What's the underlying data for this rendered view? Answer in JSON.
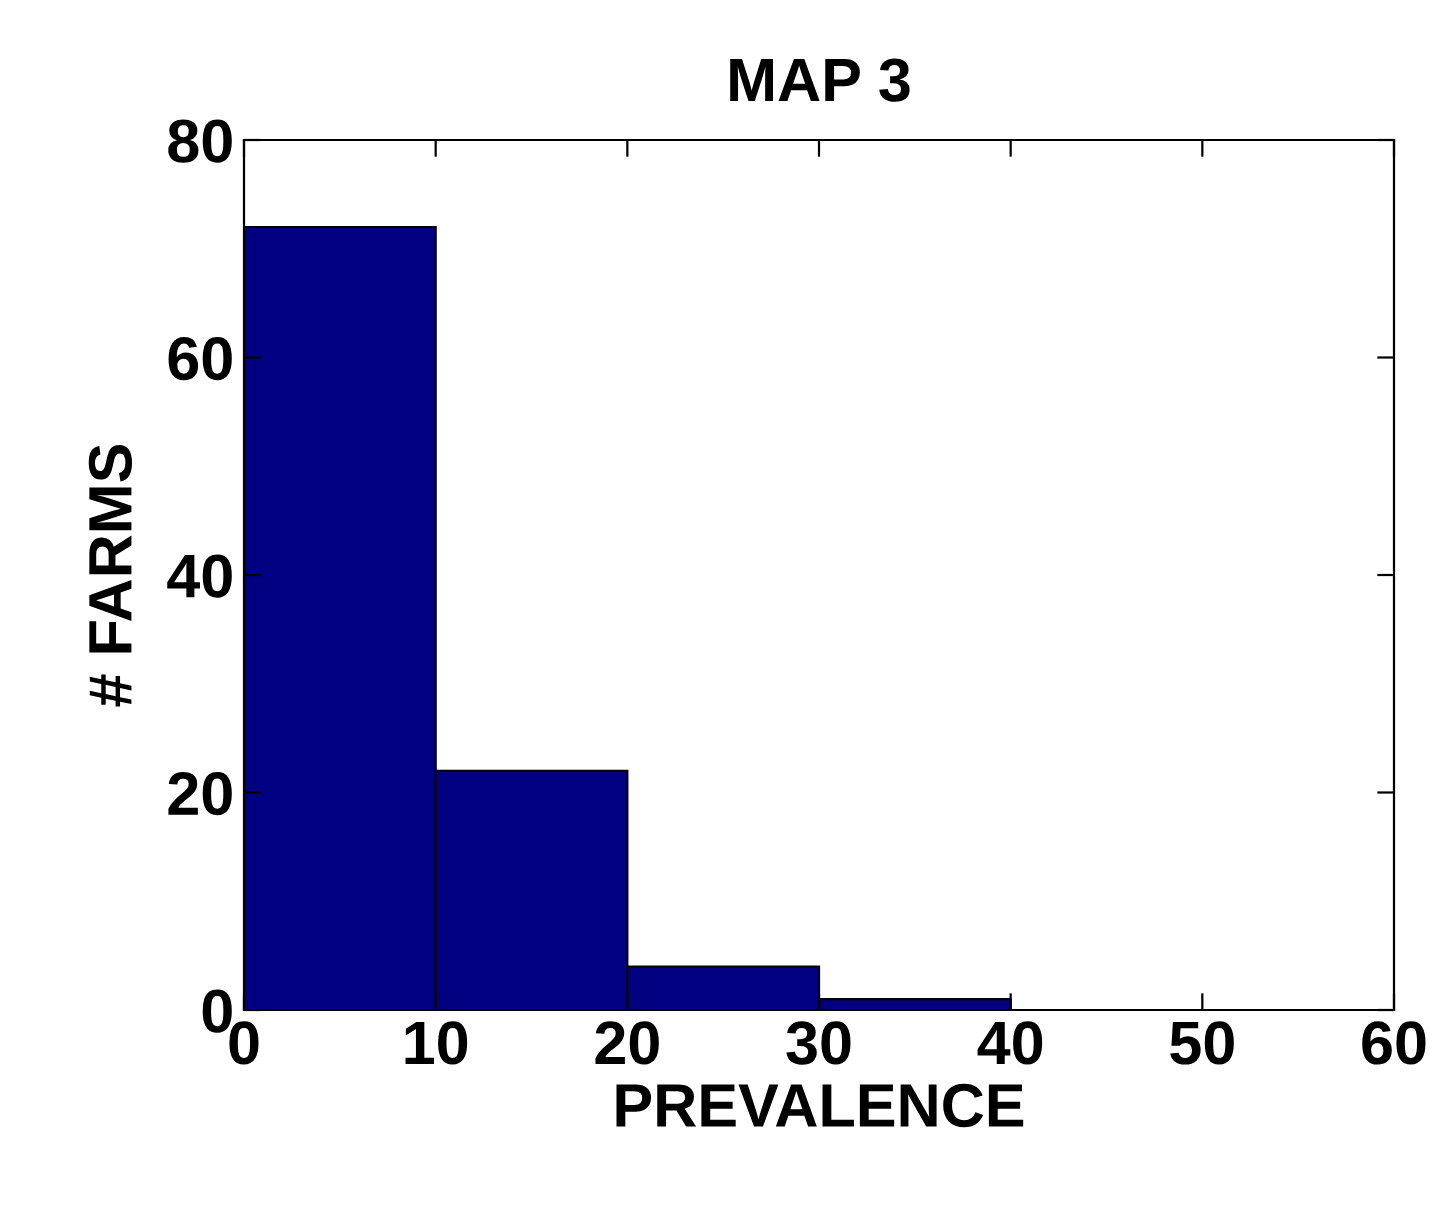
{
  "chart_data": {
    "type": "histogram",
    "title": "MAP 3",
    "xlabel": "PREVALENCE",
    "ylabel": "# FARMS",
    "bins": [
      0,
      10,
      20,
      30,
      40,
      50,
      60
    ],
    "values": [
      72,
      22,
      4,
      1,
      0,
      0
    ],
    "color": "#000080",
    "xlim": [
      0,
      60
    ],
    "xticks": [
      0,
      10,
      20,
      30,
      40,
      50,
      60
    ],
    "ylim": [
      0,
      80
    ],
    "yticks": [
      0,
      20,
      40,
      60,
      80
    ],
    "grid": false
  }
}
